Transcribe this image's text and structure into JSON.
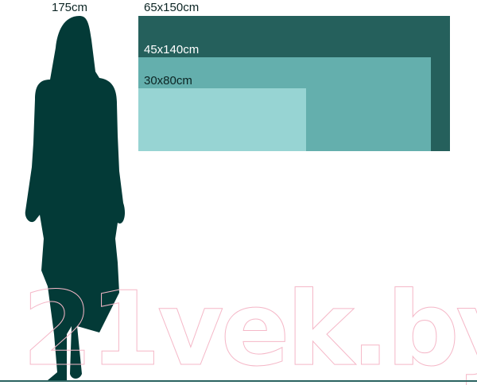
{
  "figure": {
    "height_label": "175cm",
    "color": "#033a37"
  },
  "sizes": [
    {
      "label": "65x150cm",
      "color": "#25605c",
      "label_color": "#0c2524"
    },
    {
      "label": "45x140cm",
      "color": "#64afad",
      "label_color": "#ffffff"
    },
    {
      "label": "30x80cm",
      "color": "#97d4d3",
      "label_color": "#0c2524"
    }
  ],
  "watermark": "21vek.by",
  "ground_color": "#2a6360"
}
